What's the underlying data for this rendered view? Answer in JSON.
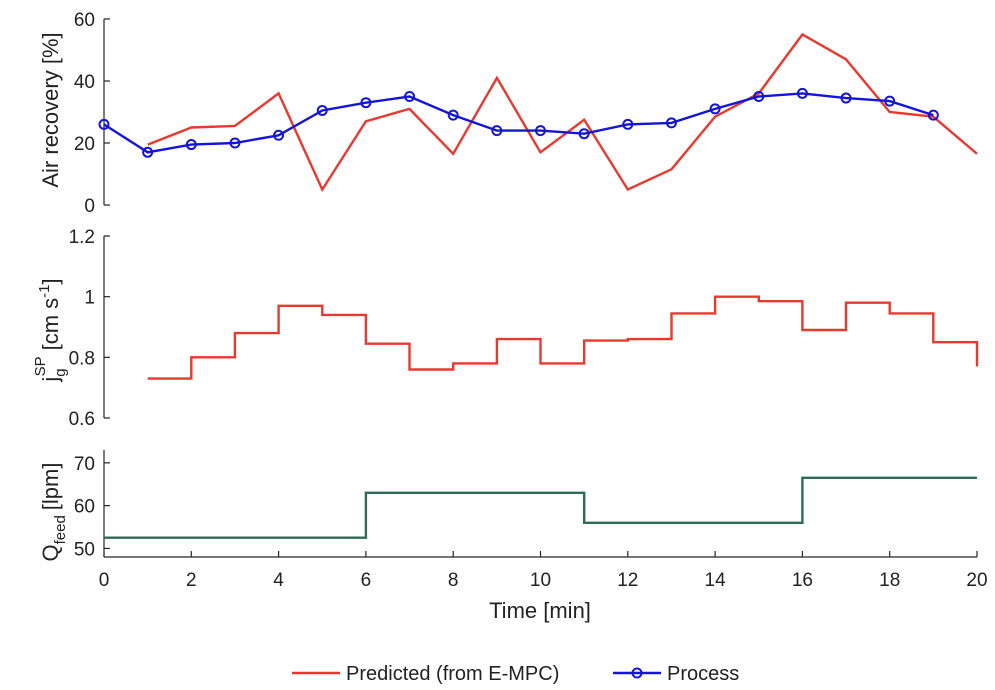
{
  "chart_data": [
    {
      "type": "line",
      "ylabel": "Air recovery [%]",
      "xlim": [
        0,
        20
      ],
      "ylim": [
        0,
        60
      ],
      "yticks": [
        "0",
        "20",
        "40",
        "60"
      ],
      "series": [
        {
          "name": "Predicted (from E-MPC)",
          "color": "#e8392f",
          "marker": "none",
          "x": [
            1,
            2,
            3,
            4,
            5,
            6,
            7,
            8,
            9,
            10,
            11,
            12,
            13,
            14,
            15,
            16,
            17,
            18,
            19,
            20
          ],
          "y": [
            19.5,
            25,
            25.5,
            36,
            5,
            27,
            31,
            16.5,
            41,
            17,
            27.5,
            5,
            11.5,
            28.5,
            36,
            55,
            47,
            30,
            28.5,
            16.5
          ]
        },
        {
          "name": "Process",
          "color": "#1515d6",
          "marker": "circle",
          "x": [
            0,
            1,
            2,
            3,
            4,
            5,
            6,
            7,
            8,
            9,
            10,
            11,
            12,
            13,
            14,
            15,
            16,
            17,
            18,
            19
          ],
          "y": [
            26,
            17,
            19.5,
            20,
            22.5,
            30.5,
            33,
            35,
            29,
            24,
            24,
            23,
            26,
            26.5,
            31,
            35,
            36,
            34.5,
            33.5,
            29
          ]
        }
      ]
    },
    {
      "type": "line",
      "step": true,
      "ylabel_main": "j",
      "ylabel_sub": "g",
      "ylabel_sup": "SP",
      "ylabel_unit": "[cm s",
      "ylabel_unit_sup": "-1",
      "ylabel_close": "]",
      "xlim": [
        0,
        20
      ],
      "ylim": [
        0.6,
        1.2
      ],
      "yticks": [
        "0.6",
        "0.8",
        "1",
        "1.2"
      ],
      "series": [
        {
          "name": "Predicted (from E-MPC)",
          "color": "#e8392f",
          "x": [
            1,
            2,
            3,
            4,
            5,
            6,
            7,
            8,
            9,
            10,
            11,
            12,
            13,
            14,
            15,
            16,
            17,
            18,
            19
          ],
          "y": [
            0.73,
            0.8,
            0.88,
            0.97,
            0.94,
            0.845,
            0.76,
            0.78,
            0.86,
            0.78,
            0.855,
            0.86,
            0.945,
            1.0,
            0.985,
            0.89,
            0.98,
            0.945,
            0.85
          ],
          "end_x": 20,
          "end_drop": 0.77
        }
      ]
    },
    {
      "type": "line",
      "step": true,
      "ylabel_main": "Q",
      "ylabel_sub": "feed",
      "ylabel_unit": "[lpm]",
      "xlabel": "Time [min]",
      "xlim": [
        0,
        20
      ],
      "ylim": [
        48,
        73
      ],
      "yticks": [
        "50",
        "60",
        "70"
      ],
      "xticks": [
        "0",
        "2",
        "4",
        "6",
        "8",
        "10",
        "12",
        "14",
        "16",
        "18",
        "20"
      ],
      "series": [
        {
          "color": "#2e6b55",
          "x": [
            0,
            6,
            11,
            16,
            20
          ],
          "y": [
            52.5,
            63,
            56,
            66.5,
            66.5
          ]
        }
      ]
    }
  ],
  "legend": {
    "position": "bottom",
    "items": [
      {
        "label": "Predicted (from E-MPC)",
        "color": "#e8392f",
        "marker": "none"
      },
      {
        "label": "Process",
        "color": "#1515d6",
        "marker": "circle"
      }
    ]
  }
}
